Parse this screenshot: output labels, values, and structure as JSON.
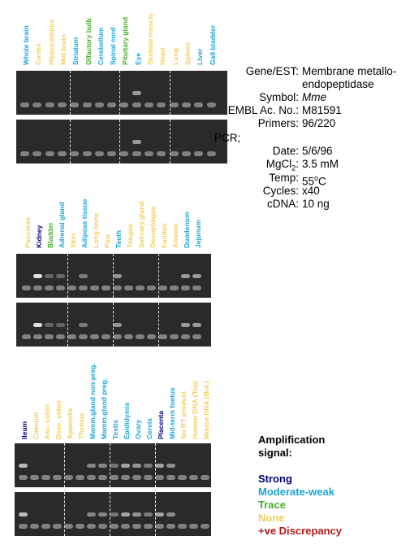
{
  "colors": {
    "strong": "#00007a",
    "moderate": "#1aa5d8",
    "trace": "#43b02a",
    "none": "#f1cf5c",
    "discrepancy": "#b31b1b"
  },
  "panels": [
    {
      "lanes": [
        {
          "label": "Whole brain",
          "cat": "moderate",
          "signal": 0.0
        },
        {
          "label": "Cortex",
          "cat": "none",
          "signal": 0.0
        },
        {
          "label": "Hippocampus",
          "cat": "none",
          "signal": 0.0
        },
        {
          "label": "Mid brain",
          "cat": "none",
          "signal": 0.0
        },
        {
          "label": "Striatum",
          "cat": "moderate",
          "signal": 0.0
        },
        {
          "label": "Olfactory bulb",
          "cat": "trace",
          "signal": 0.0
        },
        {
          "label": "Cerebellum",
          "cat": "moderate",
          "signal": 0.0
        },
        {
          "label": "Spinal cord",
          "cat": "moderate",
          "signal": 0.0
        },
        {
          "label": "Pituitary gland",
          "cat": "trace",
          "signal": 0.0
        },
        {
          "label": "Eye",
          "cat": "moderate",
          "signal": 0.55
        },
        {
          "label": "Skeletal muscle",
          "cat": "none",
          "signal": 0.0
        },
        {
          "label": "Heart",
          "cat": "none",
          "signal": 0.0
        },
        {
          "label": "Lung",
          "cat": "none",
          "signal": 0.0
        },
        {
          "label": "Spleen",
          "cat": "none",
          "signal": 0.0
        },
        {
          "label": "Liver",
          "cat": "moderate",
          "signal": 0.0
        },
        {
          "label": "Gall bladder",
          "cat": "moderate",
          "signal": 0.0
        }
      ]
    },
    {
      "lanes": [
        {
          "label": "Pancreas",
          "cat": "none",
          "signal": 0.0
        },
        {
          "label": "Kidney",
          "cat": "strong",
          "signal": 1.0
        },
        {
          "label": "Bladder",
          "cat": "trace",
          "signal": 0.2
        },
        {
          "label": "Adrenal gland",
          "cat": "moderate",
          "signal": 0.2
        },
        {
          "label": "Skin",
          "cat": "none",
          "signal": 0.0
        },
        {
          "label": "Adipose tissue",
          "cat": "moderate",
          "signal": 0.35
        },
        {
          "label": "Long bone",
          "cat": "none",
          "signal": 0.0
        },
        {
          "label": "Paw",
          "cat": "none",
          "signal": 0.0
        },
        {
          "label": "Teeth",
          "cat": "moderate",
          "signal": 0.5
        },
        {
          "label": "Tongue",
          "cat": "none",
          "signal": 0.0
        },
        {
          "label": "Salivary gland",
          "cat": "none",
          "signal": 0.0
        },
        {
          "label": "Oesophagus",
          "cat": "none",
          "signal": 0.0
        },
        {
          "label": "Fundus",
          "cat": "none",
          "signal": 0.0
        },
        {
          "label": "Antrum",
          "cat": "none",
          "signal": 0.0
        },
        {
          "label": "Duodenum",
          "cat": "moderate",
          "signal": 0.55
        },
        {
          "label": "Jejunum",
          "cat": "moderate",
          "signal": 0.55
        }
      ]
    },
    {
      "lanes": [
        {
          "label": "Ileum",
          "cat": "strong",
          "signal": 0.75
        },
        {
          "label": "Caecum",
          "cat": "none",
          "signal": 0.0
        },
        {
          "label": "Asc. colon",
          "cat": "none",
          "signal": 0.0
        },
        {
          "label": "Desc. colon",
          "cat": "none",
          "signal": 0.0
        },
        {
          "label": "Appendix",
          "cat": "none",
          "signal": 0.0
        },
        {
          "label": "Thymus",
          "cat": "none",
          "signal": 0.0
        },
        {
          "label": "Mamm.gland non-preg.",
          "cat": "moderate",
          "signal": 0.4
        },
        {
          "label": "Mamm.gland preg.",
          "cat": "moderate",
          "signal": 0.4
        },
        {
          "label": "Testis",
          "cat": "moderate",
          "signal": 0.3
        },
        {
          "label": "Epididymis",
          "cat": "moderate",
          "signal": 0.6
        },
        {
          "label": "Ovary",
          "cat": "moderate",
          "signal": 0.5
        },
        {
          "label": "Cervix",
          "cat": "moderate",
          "signal": 0.35
        },
        {
          "label": "Placenta",
          "cat": "strong",
          "signal": 0.6
        },
        {
          "label": "Mid-term foetus",
          "cat": "moderate",
          "signal": 0.45
        },
        {
          "label": "No RT product",
          "cat": "none",
          "signal": 0.0
        },
        {
          "label": "Human DNA (Top)",
          "cat": "none",
          "signal": 0.0
        },
        {
          "label": "Mouse DNA (Bot.)",
          "cat": "none",
          "signal": 0.0
        }
      ]
    }
  ],
  "info": {
    "gene_key": "Gene/EST:",
    "gene_val_1": "Membrane metallo-",
    "gene_val_2": "endopeptidase",
    "symbol_key": "Symbol:",
    "symbol_val": "Mme",
    "embl_key": "EMBL Ac. No.:",
    "embl_val": "M81591",
    "primers_key": "Primers:",
    "primers_val": "96/220",
    "pcr_key": "PCR;",
    "date_key": "Date:",
    "date_val": "5/6/96",
    "mgcl_key_base": "MgCl",
    "mgcl_key_sub": "2",
    "mgcl_key_end": ":",
    "mgcl_val": "3.5 mM",
    "temp_key": "Temp:",
    "temp_val_base": "55",
    "temp_val_sup": "o",
    "temp_val_end": "C",
    "cycles_key": "Cycles:",
    "cycles_val": "x40",
    "cdna_key": "cDNA:",
    "cdna_val": "10 ng"
  },
  "legend": {
    "title_1": "Amplification",
    "title_2": "signal:",
    "strong": "Strong",
    "moderate": "Moderate-weak",
    "trace": "Trace",
    "none": "None",
    "discrepancy": "+ve Discrepancy"
  }
}
